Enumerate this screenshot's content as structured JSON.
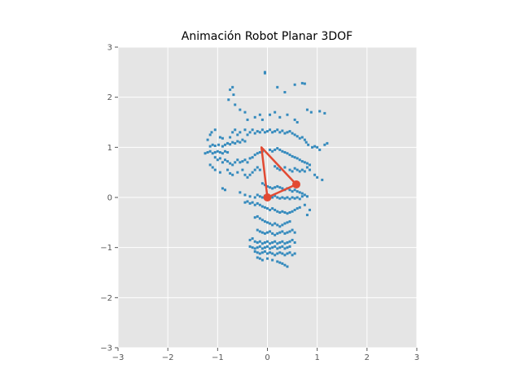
{
  "chart_data": {
    "type": "scatter",
    "title": "Animación Robot Planar 3DOF",
    "xlabel": "",
    "ylabel": "",
    "xlim": [
      -3,
      3
    ],
    "ylim": [
      -3,
      3
    ],
    "grid": true,
    "x_ticks": [
      -3,
      -2,
      -1,
      0,
      1,
      2,
      3
    ],
    "y_ticks": [
      -3,
      -2,
      -1,
      0,
      1,
      2,
      3
    ],
    "x_tick_labels": [
      "−3",
      "−2",
      "−1",
      "0",
      "1",
      "2",
      "3"
    ],
    "y_tick_labels": [
      "−3",
      "−2",
      "−1",
      "0",
      "1",
      "2",
      "3"
    ],
    "colors": {
      "background": "#e5e5e5",
      "grid": "#ffffff",
      "points": "#348abd",
      "arm": "#e24a33"
    },
    "scatter_points": [
      [
        -0.75,
        2.15
      ],
      [
        -0.7,
        2.2
      ],
      [
        -0.68,
        2.05
      ],
      [
        -0.78,
        1.95
      ],
      [
        -0.65,
        1.85
      ],
      [
        -0.55,
        1.75
      ],
      [
        -0.45,
        1.7
      ],
      [
        -0.4,
        1.55
      ],
      [
        -0.25,
        1.6
      ],
      [
        -0.15,
        1.65
      ],
      [
        -0.1,
        1.55
      ],
      [
        -0.05,
        2.5
      ],
      [
        -0.05,
        2.48
      ],
      [
        0.2,
        2.2
      ],
      [
        0.35,
        2.1
      ],
      [
        0.55,
        2.25
      ],
      [
        0.7,
        2.28
      ],
      [
        0.75,
        2.27
      ],
      [
        0.05,
        1.65
      ],
      [
        0.15,
        1.7
      ],
      [
        0.25,
        1.6
      ],
      [
        0.4,
        1.65
      ],
      [
        0.55,
        1.55
      ],
      [
        0.6,
        1.5
      ],
      [
        0.8,
        1.75
      ],
      [
        0.88,
        1.7
      ],
      [
        1.05,
        1.72
      ],
      [
        1.15,
        1.68
      ],
      [
        -1.25,
        0.88
      ],
      [
        -1.2,
        0.9
      ],
      [
        -1.15,
        0.92
      ],
      [
        -1.1,
        0.88
      ],
      [
        -1.05,
        0.9
      ],
      [
        -1.0,
        0.92
      ],
      [
        -0.95,
        0.9
      ],
      [
        -0.9,
        0.88
      ],
      [
        -0.85,
        0.92
      ],
      [
        -0.8,
        0.9
      ],
      [
        -1.15,
        1.02
      ],
      [
        -1.1,
        1.05
      ],
      [
        -1.05,
        1.03
      ],
      [
        -0.98,
        1.05
      ],
      [
        -0.9,
        1.02
      ],
      [
        -0.85,
        1.05
      ],
      [
        -0.8,
        1.08
      ],
      [
        -0.75,
        1.06
      ],
      [
        -0.7,
        1.1
      ],
      [
        -0.65,
        1.08
      ],
      [
        -0.6,
        1.12
      ],
      [
        -0.55,
        1.1
      ],
      [
        -0.5,
        1.15
      ],
      [
        -0.45,
        1.12
      ],
      [
        -1.2,
        1.15
      ],
      [
        -1.15,
        1.25
      ],
      [
        -1.12,
        1.3
      ],
      [
        -1.05,
        1.35
      ],
      [
        -0.95,
        1.2
      ],
      [
        -0.9,
        1.18
      ],
      [
        -0.75,
        1.2
      ],
      [
        -0.7,
        1.3
      ],
      [
        -0.65,
        1.35
      ],
      [
        -0.6,
        1.25
      ],
      [
        -0.55,
        1.3
      ],
      [
        -0.45,
        1.35
      ],
      [
        -0.4,
        1.25
      ],
      [
        -0.35,
        1.3
      ],
      [
        -0.3,
        1.35
      ],
      [
        -0.25,
        1.28
      ],
      [
        -0.2,
        1.32
      ],
      [
        -0.15,
        1.3
      ],
      [
        -0.1,
        1.35
      ],
      [
        -0.05,
        1.3
      ],
      [
        0.0,
        1.32
      ],
      [
        0.05,
        1.35
      ],
      [
        0.1,
        1.3
      ],
      [
        0.15,
        1.32
      ],
      [
        0.2,
        1.35
      ],
      [
        0.25,
        1.3
      ],
      [
        0.3,
        1.33
      ],
      [
        0.35,
        1.28
      ],
      [
        0.4,
        1.3
      ],
      [
        0.45,
        1.32
      ],
      [
        0.5,
        1.28
      ],
      [
        0.55,
        1.25
      ],
      [
        0.6,
        1.22
      ],
      [
        0.65,
        1.18
      ],
      [
        0.7,
        1.2
      ],
      [
        0.75,
        1.15
      ],
      [
        0.78,
        1.1
      ],
      [
        0.82,
        1.05
      ],
      [
        0.9,
        1.0
      ],
      [
        0.95,
        1.02
      ],
      [
        1.0,
        1.0
      ],
      [
        1.05,
        0.95
      ],
      [
        1.15,
        1.05
      ],
      [
        1.2,
        1.08
      ],
      [
        -1.05,
        0.8
      ],
      [
        -1.0,
        0.75
      ],
      [
        -0.95,
        0.78
      ],
      [
        -0.9,
        0.7
      ],
      [
        -0.85,
        0.75
      ],
      [
        -0.8,
        0.72
      ],
      [
        -0.75,
        0.68
      ],
      [
        -0.7,
        0.65
      ],
      [
        -0.65,
        0.7
      ],
      [
        -0.6,
        0.75
      ],
      [
        -0.55,
        0.7
      ],
      [
        -0.5,
        0.72
      ],
      [
        -0.45,
        0.75
      ],
      [
        -0.4,
        0.7
      ],
      [
        -0.35,
        0.78
      ],
      [
        -0.3,
        0.8
      ],
      [
        -0.25,
        0.85
      ],
      [
        -0.2,
        0.88
      ],
      [
        -0.15,
        0.9
      ],
      [
        -0.1,
        0.92
      ],
      [
        0.05,
        0.95
      ],
      [
        0.1,
        0.92
      ],
      [
        0.15,
        0.95
      ],
      [
        0.2,
        0.98
      ],
      [
        0.25,
        0.95
      ],
      [
        0.3,
        0.92
      ],
      [
        0.35,
        0.9
      ],
      [
        0.4,
        0.88
      ],
      [
        0.45,
        0.85
      ],
      [
        0.5,
        0.82
      ],
      [
        0.55,
        0.8
      ],
      [
        0.6,
        0.78
      ],
      [
        0.65,
        0.75
      ],
      [
        0.7,
        0.72
      ],
      [
        0.75,
        0.7
      ],
      [
        0.8,
        0.68
      ],
      [
        0.85,
        0.65
      ],
      [
        -1.15,
        0.65
      ],
      [
        -1.1,
        0.6
      ],
      [
        -1.05,
        0.55
      ],
      [
        -0.95,
        0.5
      ],
      [
        -0.8,
        0.55
      ],
      [
        -0.75,
        0.48
      ],
      [
        -0.7,
        0.45
      ],
      [
        -0.6,
        0.5
      ],
      [
        -0.5,
        0.55
      ],
      [
        -0.45,
        0.45
      ],
      [
        -0.4,
        0.4
      ],
      [
        -0.35,
        0.45
      ],
      [
        -0.3,
        0.5
      ],
      [
        -0.25,
        0.55
      ],
      [
        -0.2,
        0.6
      ],
      [
        -0.15,
        0.55
      ],
      [
        0.15,
        0.62
      ],
      [
        0.2,
        0.58
      ],
      [
        0.25,
        0.55
      ],
      [
        0.35,
        0.6
      ],
      [
        0.45,
        0.55
      ],
      [
        0.5,
        0.52
      ],
      [
        0.55,
        0.58
      ],
      [
        0.6,
        0.55
      ],
      [
        0.65,
        0.52
      ],
      [
        0.7,
        0.55
      ],
      [
        0.75,
        0.52
      ],
      [
        0.8,
        0.6
      ],
      [
        0.85,
        0.55
      ],
      [
        0.95,
        0.45
      ],
      [
        1.0,
        0.4
      ],
      [
        1.1,
        0.35
      ],
      [
        -0.1,
        0.28
      ],
      [
        -0.05,
        0.25
      ],
      [
        0.0,
        0.22
      ],
      [
        0.05,
        0.2
      ],
      [
        0.1,
        0.18
      ],
      [
        0.15,
        0.2
      ],
      [
        0.2,
        0.22
      ],
      [
        0.25,
        0.2
      ],
      [
        0.3,
        0.18
      ],
      [
        0.35,
        0.15
      ],
      [
        0.4,
        0.18
      ],
      [
        0.45,
        0.15
      ],
      [
        0.5,
        0.12
      ],
      [
        0.55,
        0.15
      ],
      [
        0.6,
        0.12
      ],
      [
        0.65,
        0.1
      ],
      [
        0.7,
        0.08
      ],
      [
        0.75,
        0.05
      ],
      [
        0.8,
        0.02
      ],
      [
        -0.9,
        0.18
      ],
      [
        -0.85,
        0.15
      ],
      [
        -0.55,
        0.1
      ],
      [
        -0.45,
        0.05
      ],
      [
        -0.35,
        0.02
      ],
      [
        -0.25,
        0.0
      ],
      [
        -0.2,
        0.05
      ],
      [
        -0.15,
        0.02
      ],
      [
        -0.1,
        0.0
      ],
      [
        -0.05,
        0.03
      ],
      [
        0.05,
        0.02
      ],
      [
        0.1,
        0.0
      ],
      [
        0.15,
        0.03
      ],
      [
        0.2,
        0.0
      ],
      [
        0.25,
        -0.02
      ],
      [
        0.3,
        0.0
      ],
      [
        0.35,
        -0.02
      ],
      [
        0.4,
        0.0
      ],
      [
        0.45,
        -0.03
      ],
      [
        0.5,
        0.0
      ],
      [
        0.55,
        -0.02
      ],
      [
        0.6,
        0.0
      ],
      [
        0.65,
        -0.03
      ],
      [
        0.7,
        0.02
      ],
      [
        -0.45,
        -0.1
      ],
      [
        -0.4,
        -0.08
      ],
      [
        -0.35,
        -0.12
      ],
      [
        -0.3,
        -0.1
      ],
      [
        -0.25,
        -0.15
      ],
      [
        -0.2,
        -0.12
      ],
      [
        -0.15,
        -0.15
      ],
      [
        -0.1,
        -0.18
      ],
      [
        -0.05,
        -0.2
      ],
      [
        0.0,
        -0.22
      ],
      [
        0.05,
        -0.25
      ],
      [
        0.1,
        -0.22
      ],
      [
        0.15,
        -0.25
      ],
      [
        0.2,
        -0.28
      ],
      [
        0.25,
        -0.3
      ],
      [
        0.3,
        -0.28
      ],
      [
        0.35,
        -0.3
      ],
      [
        0.4,
        -0.32
      ],
      [
        0.45,
        -0.3
      ],
      [
        0.5,
        -0.28
      ],
      [
        0.55,
        -0.25
      ],
      [
        0.6,
        -0.22
      ],
      [
        0.65,
        -0.2
      ],
      [
        0.75,
        -0.15
      ],
      [
        0.85,
        -0.25
      ],
      [
        0.8,
        -0.35
      ],
      [
        -0.25,
        -0.4
      ],
      [
        -0.2,
        -0.38
      ],
      [
        -0.15,
        -0.42
      ],
      [
        -0.1,
        -0.45
      ],
      [
        -0.05,
        -0.48
      ],
      [
        0.0,
        -0.5
      ],
      [
        0.05,
        -0.52
      ],
      [
        0.1,
        -0.55
      ],
      [
        0.15,
        -0.52
      ],
      [
        0.2,
        -0.55
      ],
      [
        0.25,
        -0.58
      ],
      [
        0.3,
        -0.55
      ],
      [
        0.35,
        -0.52
      ],
      [
        0.4,
        -0.5
      ],
      [
        0.45,
        -0.48
      ],
      [
        -0.2,
        -0.65
      ],
      [
        -0.15,
        -0.68
      ],
      [
        -0.1,
        -0.7
      ],
      [
        -0.05,
        -0.72
      ],
      [
        0.0,
        -0.7
      ],
      [
        0.05,
        -0.68
      ],
      [
        0.1,
        -0.72
      ],
      [
        0.15,
        -0.75
      ],
      [
        0.2,
        -0.72
      ],
      [
        0.25,
        -0.7
      ],
      [
        0.3,
        -0.68
      ],
      [
        0.35,
        -0.72
      ],
      [
        0.4,
        -0.7
      ],
      [
        0.45,
        -0.68
      ],
      [
        0.5,
        -0.65
      ],
      [
        0.55,
        -0.7
      ],
      [
        -0.35,
        -0.85
      ],
      [
        -0.3,
        -0.82
      ],
      [
        -0.25,
        -0.88
      ],
      [
        -0.2,
        -0.9
      ],
      [
        -0.15,
        -0.88
      ],
      [
        -0.1,
        -0.92
      ],
      [
        -0.05,
        -0.9
      ],
      [
        0.0,
        -0.88
      ],
      [
        0.05,
        -0.92
      ],
      [
        0.1,
        -0.9
      ],
      [
        0.15,
        -0.88
      ],
      [
        0.2,
        -0.92
      ],
      [
        0.25,
        -0.9
      ],
      [
        0.3,
        -0.88
      ],
      [
        0.35,
        -0.92
      ],
      [
        0.4,
        -0.9
      ],
      [
        0.45,
        -0.88
      ],
      [
        0.5,
        -0.85
      ],
      [
        0.55,
        -0.9
      ],
      [
        -0.35,
        -0.98
      ],
      [
        -0.3,
        -1.0
      ],
      [
        -0.25,
        -1.02
      ],
      [
        -0.2,
        -1.0
      ],
      [
        -0.15,
        -0.98
      ],
      [
        -0.1,
        -1.02
      ],
      [
        -0.05,
        -1.0
      ],
      [
        0.0,
        -0.98
      ],
      [
        0.05,
        -1.02
      ],
      [
        0.1,
        -1.0
      ],
      [
        0.15,
        -0.98
      ],
      [
        0.2,
        -1.02
      ],
      [
        0.25,
        -1.0
      ],
      [
        0.3,
        -0.98
      ],
      [
        0.35,
        -1.02
      ],
      [
        0.4,
        -1.0
      ],
      [
        0.45,
        -0.98
      ],
      [
        -0.25,
        -1.08
      ],
      [
        -0.2,
        -1.1
      ],
      [
        -0.15,
        -1.12
      ],
      [
        -0.1,
        -1.1
      ],
      [
        -0.05,
        -1.08
      ],
      [
        0.0,
        -1.12
      ],
      [
        0.05,
        -1.1
      ],
      [
        0.1,
        -1.12
      ],
      [
        0.15,
        -1.15
      ],
      [
        0.2,
        -1.12
      ],
      [
        0.25,
        -1.1
      ],
      [
        0.3,
        -1.12
      ],
      [
        0.35,
        -1.15
      ],
      [
        0.4,
        -1.12
      ],
      [
        0.45,
        -1.1
      ],
      [
        0.5,
        -1.15
      ],
      [
        0.55,
        -1.12
      ],
      [
        -0.2,
        -1.2
      ],
      [
        -0.15,
        -1.22
      ],
      [
        -0.1,
        -1.25
      ],
      [
        0.0,
        -1.22
      ],
      [
        0.1,
        -1.25
      ],
      [
        0.2,
        -1.28
      ],
      [
        0.25,
        -1.3
      ],
      [
        0.3,
        -1.32
      ],
      [
        0.35,
        -1.35
      ],
      [
        0.4,
        -1.38
      ]
    ],
    "robot_arm": {
      "joints_x": [
        0.0,
        -0.12,
        0.58,
        0.0
      ],
      "joints_y": [
        0.0,
        1.0,
        0.26,
        0.0
      ],
      "joint_markers": [
        [
          0.0,
          0.0
        ],
        [
          0.58,
          0.26
        ]
      ]
    }
  }
}
